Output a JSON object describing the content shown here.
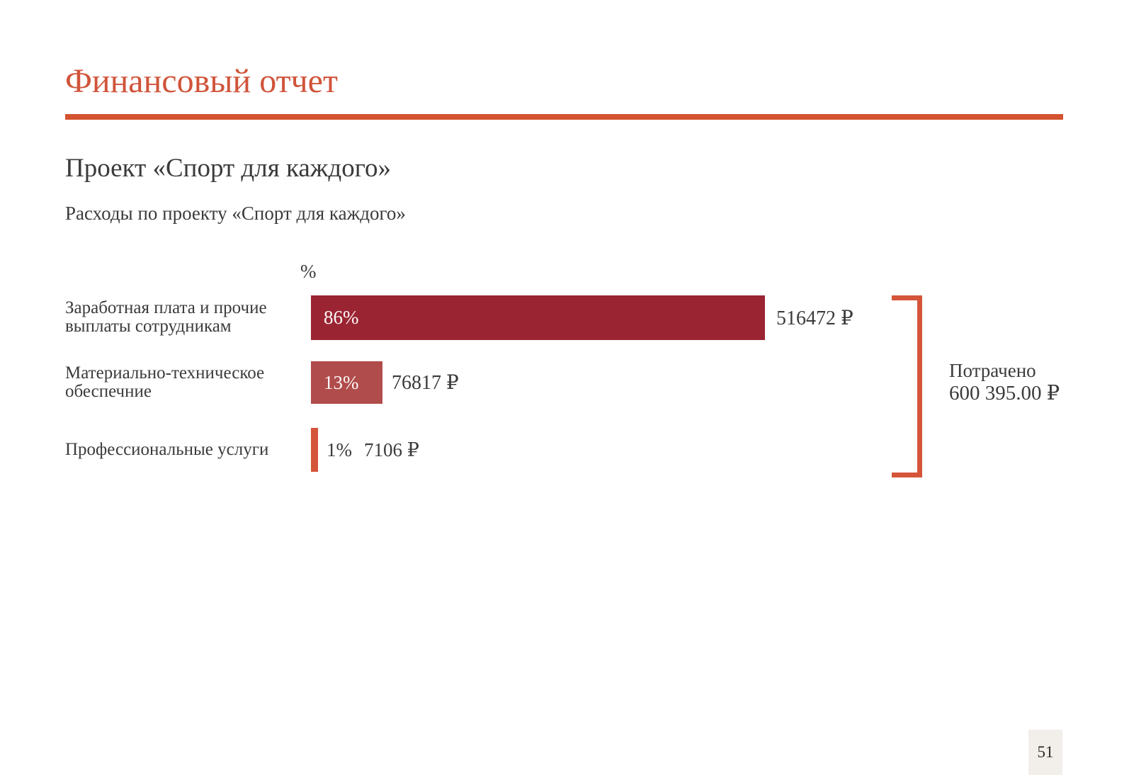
{
  "slide": {
    "title": "Финансовый отчет",
    "subtitle": "Проект «Спорт для каждого»",
    "caption": "Расходы по проекту «Спорт для каждого»",
    "page_number": "51"
  },
  "colors": {
    "accent": "#D4553A",
    "bar_primary": "#9B2433",
    "bar_secondary": "#B04C4B",
    "text": "#3B3B3B"
  },
  "chart_data": {
    "type": "bar",
    "orientation": "horizontal",
    "title": "Расходы по проекту «Спорт для каждого»",
    "axis_unit_label": "%",
    "xlim": [
      0,
      100
    ],
    "grid": false,
    "legend": false,
    "categories": [
      "Заработная плата и прочие выплаты сотрудникам",
      "Материально-техническое обеспечние",
      "Профессиональные услуги"
    ],
    "percent_values": [
      86,
      13,
      1
    ],
    "amount_values_rub": [
      516472,
      76817,
      7106
    ],
    "bar_colors": [
      "#9B2433",
      "#B04C4B",
      "#D4553A"
    ],
    "rows": [
      {
        "label": "Заработная плата и прочие\nвыплаты сотрудникам",
        "percent_label": "86%",
        "amount_label": "516472 ₽"
      },
      {
        "label": "Материально-техническое\nобеспечние",
        "percent_label": "13%",
        "amount_label": "76817 ₽"
      },
      {
        "label": "Профессиональные услуги",
        "percent_label": "1%",
        "amount_label": "7106 ₽"
      }
    ],
    "total": {
      "label": "Потрачено",
      "value": "600 395.00 ₽"
    }
  }
}
